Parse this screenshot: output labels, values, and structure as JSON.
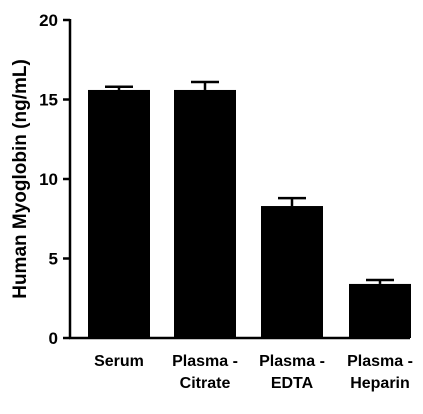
{
  "chart_data": {
    "type": "bar",
    "title": "",
    "xlabel": "",
    "ylabel": "Human Myoglobin (ng/mL)",
    "ylim": [
      0,
      20
    ],
    "yticks": [
      0,
      5,
      10,
      15,
      20
    ],
    "categories": [
      [
        "Serum"
      ],
      [
        "Plasma -",
        "Citrate"
      ],
      [
        "Plasma -",
        "EDTA"
      ],
      [
        "Plasma -",
        "Heparin"
      ]
    ],
    "values": [
      15.6,
      15.6,
      8.3,
      3.4
    ],
    "errors": [
      0.2,
      0.5,
      0.5,
      0.25
    ],
    "error_bars": "upper",
    "grid": false,
    "bar_color": "#000000",
    "legend": "none"
  }
}
